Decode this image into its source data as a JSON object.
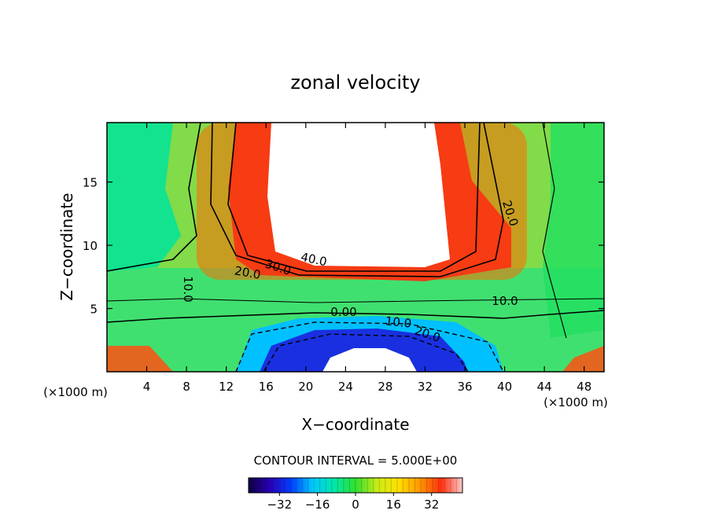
{
  "chart_data": {
    "type": "heatmap",
    "title": "zonal velocity",
    "xlabel": "X−coordinate",
    "ylabel": "Z−coordinate",
    "x_unit_label": "(×1000 m)",
    "z_unit_label": "(×1000 m)",
    "xlim": [
      0,
      50
    ],
    "ylim": [
      0,
      19.7
    ],
    "x_ticks": [
      "4",
      "8",
      "12",
      "16",
      "20",
      "24",
      "28",
      "32",
      "36",
      "40",
      "44",
      "48"
    ],
    "y_ticks": [
      "5",
      "10",
      "15"
    ],
    "contour_interval_text": "CONTOUR INTERVAL = 5.000E+00",
    "contour_labels": [
      "40.0",
      "30.0",
      "20.0",
      "20.0",
      "10.0",
      "10.0",
      "0.00",
      "10.0",
      "20.0"
    ],
    "colorbar": {
      "range": [
        -45,
        45
      ],
      "tick_labels": [
        "−32",
        "−16",
        "0",
        "16",
        "32"
      ],
      "tick_values": [
        -32,
        -16,
        0,
        16,
        32
      ]
    },
    "colormap": [
      "#0d0040",
      "#2a00b8",
      "#0040ff",
      "#00c8ff",
      "#00e8a8",
      "#30e030",
      "#c8ec18",
      "#ffe000",
      "#ff9800",
      "#ff3010",
      "#ffc8c8"
    ],
    "missing_color": "#ffffff"
  }
}
